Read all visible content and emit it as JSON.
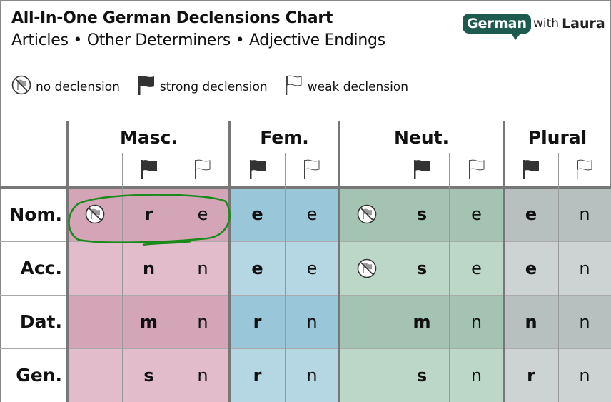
{
  "title": "All-In-One German Declensions Chart",
  "subtitle": "Articles • Other Determiners • Adjective Endings",
  "logo": {
    "main": "German",
    "with": "with",
    "name": "Laura",
    "color": "#1e5b4f"
  },
  "legend": [
    {
      "icon": "no-declension-icon",
      "label": "no declension"
    },
    {
      "icon": "strong-flag-icon",
      "label": "strong declension"
    },
    {
      "icon": "weak-flag-icon",
      "label": "weak declension"
    }
  ],
  "genders": [
    {
      "label": "Masc.",
      "columns": [
        "none",
        "strong",
        "weak"
      ],
      "colors": [
        "#d4a5b7",
        "#e2bccb"
      ]
    },
    {
      "label": "Fem.",
      "columns": [
        "strong",
        "weak"
      ],
      "colors": [
        "#9ac6d9",
        "#b5d7e3"
      ]
    },
    {
      "label": "Neut.",
      "columns": [
        "none",
        "strong",
        "weak"
      ],
      "colors": [
        "#a5c3b3",
        "#bcd6c7"
      ]
    },
    {
      "label": "Plural",
      "columns": [
        "strong",
        "weak"
      ],
      "colors": [
        "#b7c0be",
        "#cdd3d2"
      ]
    }
  ],
  "cases": [
    {
      "label": "Nom.",
      "cells": [
        "ø",
        "r",
        "e",
        "e",
        "e",
        "ø",
        "s",
        "e",
        "e",
        "n"
      ]
    },
    {
      "label": "Acc.",
      "cells": [
        "",
        "n",
        "n",
        "e",
        "e",
        "ø",
        "s",
        "e",
        "e",
        "n"
      ]
    },
    {
      "label": "Dat.",
      "cells": [
        "",
        "m",
        "n",
        "r",
        "n",
        "",
        "m",
        "n",
        "n",
        "n"
      ]
    },
    {
      "label": "Gen.",
      "cells": [
        "",
        "s",
        "n",
        "r",
        "n",
        "",
        "s",
        "n",
        "r",
        "n"
      ]
    }
  ],
  "highlight": {
    "case": "Nom.",
    "gender": "Masc.",
    "color": "#1a8a1a"
  }
}
